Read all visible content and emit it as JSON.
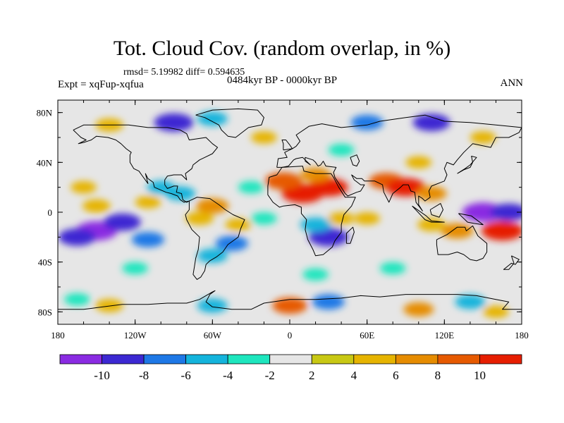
{
  "chart_data": {
    "type": "heatmap",
    "title": "Tot. Cloud Cov. (random overlap, in %)",
    "stats": "rmsd= 5.19982 diff= 0.594635",
    "experiment": "Expt = xqFup-xqfua",
    "period": "0484kyr BP - 0000kyr BP",
    "season": "ANN",
    "xlim": [
      -180,
      180
    ],
    "ylim": [
      -90,
      90
    ],
    "x_ticks": [
      {
        "value": -180,
        "label": "180"
      },
      {
        "value": -120,
        "label": "120W"
      },
      {
        "value": -60,
        "label": "60W"
      },
      {
        "value": 0,
        "label": "0"
      },
      {
        "value": 60,
        "label": "60E"
      },
      {
        "value": 120,
        "label": "120E"
      },
      {
        "value": 180,
        "label": "180"
      }
    ],
    "y_ticks": [
      {
        "value": 80,
        "label": "80N"
      },
      {
        "value": 40,
        "label": "40N"
      },
      {
        "value": 0,
        "label": "0"
      },
      {
        "value": -40,
        "label": "40S"
      },
      {
        "value": -80,
        "label": "80S"
      }
    ],
    "levels": [
      -10,
      -8,
      -6,
      -4,
      -2,
      2,
      4,
      6,
      8,
      10
    ],
    "colorbar_labels": [
      "-10",
      "-8",
      "-6",
      "-4",
      "-2",
      "2",
      "4",
      "6",
      "8",
      "10"
    ],
    "colors": [
      "#8a2be2",
      "#3c28d2",
      "#1e78e6",
      "#14b4dc",
      "#1ee6be",
      "#e6e6e6",
      "#c8c814",
      "#e6b400",
      "#e68c00",
      "#e65a00",
      "#e61e00"
    ],
    "neutral_color": "#e6e6e6",
    "anomalies": [
      {
        "lon": -150,
        "lat": -15,
        "value": -11
      },
      {
        "lon": -130,
        "lat": -8,
        "value": -9
      },
      {
        "lon": -165,
        "lat": -20,
        "value": -9
      },
      {
        "lon": -110,
        "lat": -22,
        "value": -7
      },
      {
        "lon": -150,
        "lat": 5,
        "value": 5
      },
      {
        "lon": -160,
        "lat": 20,
        "value": 4
      },
      {
        "lon": -110,
        "lat": 8,
        "value": 4
      },
      {
        "lon": -85,
        "lat": 15,
        "value": -6
      },
      {
        "lon": -100,
        "lat": 20,
        "value": -5
      },
      {
        "lon": -60,
        "lat": 5,
        "value": 7
      },
      {
        "lon": -70,
        "lat": -5,
        "value": 5
      },
      {
        "lon": -45,
        "lat": -25,
        "value": -7
      },
      {
        "lon": -60,
        "lat": -35,
        "value": -6
      },
      {
        "lon": -40,
        "lat": -10,
        "value": 4
      },
      {
        "lon": -20,
        "lat": -5,
        "value": -4
      },
      {
        "lon": -30,
        "lat": 20,
        "value": -4
      },
      {
        "lon": 10,
        "lat": 15,
        "value": 11
      },
      {
        "lon": 30,
        "lat": 20,
        "value": 10
      },
      {
        "lon": -5,
        "lat": 25,
        "value": 9
      },
      {
        "lon": 20,
        "lat": 30,
        "value": 6
      },
      {
        "lon": 30,
        "lat": -20,
        "value": -10
      },
      {
        "lon": 20,
        "lat": -10,
        "value": -6
      },
      {
        "lon": 40,
        "lat": -5,
        "value": 4
      },
      {
        "lon": 60,
        "lat": -5,
        "value": 4
      },
      {
        "lon": 75,
        "lat": 25,
        "value": 8
      },
      {
        "lon": 90,
        "lat": 20,
        "value": 10
      },
      {
        "lon": 110,
        "lat": 15,
        "value": 6
      },
      {
        "lon": 100,
        "lat": 40,
        "value": 4
      },
      {
        "lon": 150,
        "lat": 0,
        "value": -11
      },
      {
        "lon": 170,
        "lat": 0,
        "value": -9
      },
      {
        "lon": 130,
        "lat": -15,
        "value": 7
      },
      {
        "lon": 165,
        "lat": -15,
        "value": 11
      },
      {
        "lon": 110,
        "lat": -10,
        "value": 5
      },
      {
        "lon": -90,
        "lat": 72,
        "value": -10
      },
      {
        "lon": -60,
        "lat": 75,
        "value": -6
      },
      {
        "lon": -140,
        "lat": 70,
        "value": 5
      },
      {
        "lon": -20,
        "lat": 60,
        "value": 4
      },
      {
        "lon": 60,
        "lat": 72,
        "value": -7
      },
      {
        "lon": 110,
        "lat": 72,
        "value": -9
      },
      {
        "lon": 150,
        "lat": 60,
        "value": 4
      },
      {
        "lon": 40,
        "lat": 50,
        "value": -4
      },
      {
        "lon": 20,
        "lat": -50,
        "value": -4
      },
      {
        "lon": 80,
        "lat": -45,
        "value": -4
      },
      {
        "lon": -120,
        "lat": -45,
        "value": -4
      },
      {
        "lon": 0,
        "lat": -75,
        "value": 8
      },
      {
        "lon": 30,
        "lat": -72,
        "value": -7
      },
      {
        "lon": -60,
        "lat": -75,
        "value": -6
      },
      {
        "lon": 100,
        "lat": -78,
        "value": 6
      },
      {
        "lon": 140,
        "lat": -72,
        "value": -6
      },
      {
        "lon": -140,
        "lat": -75,
        "value": 5
      },
      {
        "lon": -165,
        "lat": -70,
        "value": -4
      },
      {
        "lon": 160,
        "lat": -80,
        "value": 4
      }
    ]
  }
}
